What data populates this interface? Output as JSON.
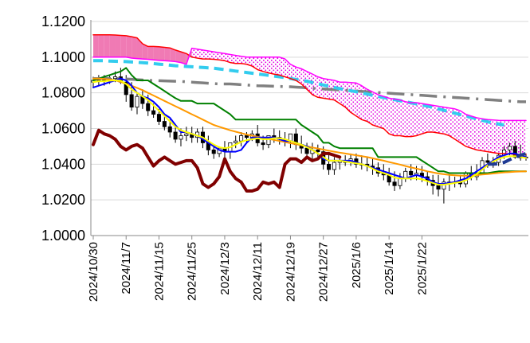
{
  "chart_data": {
    "type": "line",
    "title": "",
    "xlabel": "",
    "ylabel": "",
    "ylim": [
      1.0,
      1.12
    ],
    "yticks": [
      "1.1200",
      "1.1000",
      "1.0800",
      "1.0600",
      "1.0400",
      "1.0200",
      "1.0000"
    ],
    "ytick_values": [
      1.12,
      1.1,
      1.08,
      1.06,
      1.04,
      1.02,
      1.0
    ],
    "xticks": [
      "2024/10/30",
      "2024/11/7",
      "2024/11/15",
      "2024/11/25",
      "2024/12/3",
      "2024/12/11",
      "2024/12/19",
      "2024/12/27",
      "2025/1/6",
      "2025/1/14",
      "2025/1/22"
    ],
    "n_points": 80,
    "grid": "horizontal",
    "candles": {
      "open": [
        1.086,
        1.087,
        1.087,
        1.087,
        1.088,
        1.089,
        1.086,
        1.079,
        1.072,
        1.078,
        1.074,
        1.07,
        1.068,
        1.064,
        1.061,
        1.058,
        1.054,
        1.056,
        1.057,
        1.055,
        1.058,
        1.052,
        1.048,
        1.046,
        1.049,
        1.047,
        1.052,
        1.053,
        1.056,
        1.055,
        1.057,
        1.052,
        1.051,
        1.056,
        1.055,
        1.054,
        1.053,
        1.057,
        1.051,
        1.049,
        1.046,
        1.048,
        1.047,
        1.04,
        1.037,
        1.041,
        1.042,
        1.041,
        1.043,
        1.04,
        1.04,
        1.039,
        1.038,
        1.035,
        1.034,
        1.03,
        1.028,
        1.032,
        1.036,
        1.034,
        1.035,
        1.033,
        1.031,
        1.028,
        1.026,
        1.03,
        1.03,
        1.03,
        1.029,
        1.035,
        1.033,
        1.035,
        1.042,
        1.041,
        1.041,
        1.045,
        1.048,
        1.05,
        1.044,
        1.044
      ],
      "high": [
        1.089,
        1.09,
        1.09,
        1.09,
        1.092,
        1.094,
        1.09,
        1.086,
        1.08,
        1.082,
        1.079,
        1.074,
        1.071,
        1.068,
        1.065,
        1.062,
        1.06,
        1.061,
        1.061,
        1.06,
        1.061,
        1.056,
        1.051,
        1.05,
        1.053,
        1.051,
        1.056,
        1.058,
        1.058,
        1.059,
        1.062,
        1.056,
        1.055,
        1.06,
        1.059,
        1.058,
        1.057,
        1.06,
        1.056,
        1.052,
        1.052,
        1.051,
        1.05,
        1.046,
        1.044,
        1.044,
        1.045,
        1.046,
        1.046,
        1.045,
        1.044,
        1.043,
        1.041,
        1.04,
        1.038,
        1.036,
        1.035,
        1.038,
        1.04,
        1.039,
        1.039,
        1.036,
        1.034,
        1.034,
        1.032,
        1.034,
        1.033,
        1.034,
        1.036,
        1.039,
        1.04,
        1.044,
        1.046,
        1.044,
        1.046,
        1.05,
        1.052,
        1.053,
        1.051,
        1.046
      ],
      "low": [
        1.083,
        1.084,
        1.084,
        1.085,
        1.086,
        1.085,
        1.075,
        1.07,
        1.068,
        1.071,
        1.067,
        1.066,
        1.062,
        1.059,
        1.055,
        1.052,
        1.05,
        1.053,
        1.052,
        1.052,
        1.049,
        1.045,
        1.043,
        1.044,
        1.043,
        1.043,
        1.049,
        1.05,
        1.052,
        1.053,
        1.05,
        1.048,
        1.049,
        1.052,
        1.051,
        1.05,
        1.049,
        1.048,
        1.046,
        1.043,
        1.042,
        1.043,
        1.037,
        1.034,
        1.034,
        1.037,
        1.039,
        1.039,
        1.038,
        1.037,
        1.036,
        1.034,
        1.033,
        1.031,
        1.028,
        1.025,
        1.026,
        1.03,
        1.031,
        1.031,
        1.03,
        1.028,
        1.023,
        1.022,
        1.018,
        1.025,
        1.027,
        1.027,
        1.027,
        1.031,
        1.031,
        1.034,
        1.038,
        1.038,
        1.039,
        1.043,
        1.045,
        1.043,
        1.042,
        1.042
      ],
      "close": [
        1.087,
        1.087,
        1.087,
        1.088,
        1.089,
        1.086,
        1.079,
        1.072,
        1.078,
        1.074,
        1.07,
        1.068,
        1.064,
        1.061,
        1.058,
        1.054,
        1.056,
        1.057,
        1.055,
        1.058,
        1.052,
        1.048,
        1.046,
        1.049,
        1.047,
        1.052,
        1.053,
        1.056,
        1.055,
        1.057,
        1.052,
        1.051,
        1.056,
        1.055,
        1.054,
        1.053,
        1.057,
        1.051,
        1.049,
        1.046,
        1.048,
        1.047,
        1.04,
        1.037,
        1.041,
        1.042,
        1.041,
        1.043,
        1.04,
        1.04,
        1.039,
        1.038,
        1.035,
        1.034,
        1.03,
        1.028,
        1.032,
        1.036,
        1.034,
        1.035,
        1.033,
        1.031,
        1.028,
        1.026,
        1.03,
        1.03,
        1.03,
        1.029,
        1.035,
        1.033,
        1.035,
        1.042,
        1.041,
        1.041,
        1.045,
        1.048,
        1.05,
        1.044,
        1.044,
        1.044
      ]
    },
    "series": [
      {
        "key": "span_a",
        "color": "#ff0000",
        "width": 1.5,
        "offset": 0,
        "values": [
          1.1125,
          1.1125,
          1.1125,
          1.1125,
          1.1124,
          1.1122,
          1.112,
          1.1115,
          1.1108,
          1.1075,
          1.106,
          1.106,
          1.1058,
          1.1055,
          1.1052,
          1.104,
          1.103,
          1.102,
          1.1,
          1.0995,
          1.099,
          1.099,
          1.0988,
          1.0985,
          1.098,
          1.097,
          1.0965,
          1.0965,
          1.096,
          1.095,
          1.093,
          1.092,
          1.0912,
          1.0905,
          1.09,
          1.089,
          1.088,
          1.087,
          1.085,
          1.082,
          1.079,
          1.0775,
          1.077,
          1.0765,
          1.076,
          1.074,
          1.072,
          1.069,
          1.067,
          1.065,
          1.064,
          1.062,
          1.061,
          1.06,
          1.057,
          1.056,
          1.056,
          1.0555,
          1.0555,
          1.056,
          1.057,
          1.058,
          1.058,
          1.0575,
          1.057,
          1.056,
          1.054,
          1.052,
          1.05,
          1.049,
          1.048,
          1.0475,
          1.047,
          1.0465,
          1.046,
          1.046,
          1.0458,
          1.0455,
          1.0455,
          1.0455
        ]
      },
      {
        "key": "span_b",
        "color": "#ff00ff",
        "width": 1.5,
        "offset": 0,
        "values": [
          1.1,
          1.1,
          1.1,
          1.1,
          1.1,
          1.1,
          1.1,
          1.0995,
          1.0992,
          1.099,
          1.0988,
          1.0985,
          1.0982,
          1.098,
          1.0978,
          1.0975,
          1.097,
          1.096,
          1.105,
          1.1045,
          1.104,
          1.1035,
          1.103,
          1.1025,
          1.102,
          1.1015,
          1.101,
          1.1005,
          1.1,
          1.1,
          1.1,
          1.1,
          1.1,
          1.1,
          1.1,
          1.099,
          1.096,
          1.0945,
          1.0935,
          1.092,
          1.0905,
          1.089,
          1.088,
          1.0875,
          1.087,
          1.086,
          1.086,
          1.0858,
          1.0855,
          1.084,
          1.082,
          1.0805,
          1.079,
          1.078,
          1.077,
          1.0765,
          1.076,
          1.075,
          1.0745,
          1.0745,
          1.074,
          1.0735,
          1.073,
          1.0725,
          1.072,
          1.0715,
          1.071,
          1.07,
          1.068,
          1.067,
          1.066,
          1.0655,
          1.065,
          1.0648,
          1.0646,
          1.0645,
          1.0645,
          1.0645,
          1.0645,
          1.0645
        ]
      },
      {
        "key": "base",
        "color": "#008000",
        "width": 2,
        "offset": 0,
        "values": [
          1.087,
          1.088,
          1.089,
          1.09,
          1.091,
          1.092,
          1.094,
          1.09,
          1.087,
          1.087,
          1.087,
          1.085,
          1.083,
          1.081,
          1.079,
          1.077,
          1.0755,
          1.0755,
          1.0755,
          1.074,
          1.074,
          1.074,
          1.074,
          1.072,
          1.07,
          1.068,
          1.065,
          1.065,
          1.065,
          1.065,
          1.065,
          1.065,
          1.065,
          1.065,
          1.065,
          1.065,
          1.065,
          1.065,
          1.062,
          1.06,
          1.058,
          1.056,
          1.052,
          1.052,
          1.05,
          1.049,
          1.049,
          1.049,
          1.049,
          1.049,
          1.049,
          1.049,
          1.044,
          1.044,
          1.044,
          1.044,
          1.044,
          1.044,
          1.044,
          1.044,
          1.042,
          1.04,
          1.038,
          1.036,
          1.036,
          1.035,
          1.035,
          1.035,
          1.035,
          1.035,
          1.035,
          1.035,
          1.035,
          1.0355,
          1.036,
          1.036,
          1.036,
          1.036,
          1.036,
          1.036
        ]
      },
      {
        "key": "conv",
        "color": "#0000ff",
        "width": 2,
        "offset": 0,
        "values": [
          1.083,
          1.084,
          1.085,
          1.086,
          1.087,
          1.088,
          1.087,
          1.084,
          1.08,
          1.078,
          1.077,
          1.075,
          1.072,
          1.068,
          1.066,
          1.062,
          1.058,
          1.058,
          1.057,
          1.056,
          1.054,
          1.052,
          1.05,
          1.048,
          1.047,
          1.047,
          1.047,
          1.048,
          1.052,
          1.055,
          1.055,
          1.055,
          1.055,
          1.055,
          1.054,
          1.053,
          1.053,
          1.052,
          1.051,
          1.05,
          1.048,
          1.046,
          1.043,
          1.042,
          1.042,
          1.042,
          1.042,
          1.042,
          1.041,
          1.04,
          1.039,
          1.038,
          1.037,
          1.036,
          1.035,
          1.034,
          1.033,
          1.032,
          1.033,
          1.034,
          1.033,
          1.032,
          1.03,
          1.029,
          1.029,
          1.0295,
          1.03,
          1.031,
          1.032,
          1.034,
          1.036,
          1.038,
          1.04,
          1.042,
          1.044,
          1.045,
          1.046,
          1.046,
          1.045,
          1.044
        ]
      },
      {
        "key": "ma_short",
        "color": "#ffff00",
        "width": 2,
        "offset": 0,
        "values": [
          1.086,
          1.0865,
          1.0865,
          1.0868,
          1.087,
          1.0868,
          1.085,
          1.082,
          1.08,
          1.078,
          1.076,
          1.073,
          1.07,
          1.067,
          1.064,
          1.061,
          1.059,
          1.058,
          1.057,
          1.056,
          1.055,
          1.053,
          1.051,
          1.0495,
          1.049,
          1.0495,
          1.051,
          1.0525,
          1.0535,
          1.054,
          1.0545,
          1.054,
          1.054,
          1.0545,
          1.0545,
          1.054,
          1.053,
          1.052,
          1.051,
          1.0495,
          1.048,
          1.046,
          1.044,
          1.042,
          1.042,
          1.042,
          1.0415,
          1.041,
          1.0405,
          1.04,
          1.039,
          1.0375,
          1.036,
          1.035,
          1.034,
          1.0325,
          1.032,
          1.032,
          1.032,
          1.032,
          1.0315,
          1.0305,
          1.0295,
          1.0285,
          1.0285,
          1.029,
          1.0295,
          1.03,
          1.031,
          1.0325,
          1.0345,
          1.037,
          1.0395,
          1.0415,
          1.043,
          1.044,
          1.0445,
          1.0445,
          1.044,
          1.0435
        ]
      },
      {
        "key": "ma_long",
        "color": "#ff9900",
        "width": 2,
        "offset": 0,
        "values": [
          1.088,
          1.088,
          1.0878,
          1.0875,
          1.087,
          1.0862,
          1.085,
          1.084,
          1.0828,
          1.0815,
          1.08,
          1.0785,
          1.077,
          1.0755,
          1.074,
          1.0725,
          1.071,
          1.0695,
          1.068,
          1.0665,
          1.065,
          1.0635,
          1.062,
          1.061,
          1.06,
          1.059,
          1.0582,
          1.0574,
          1.0566,
          1.056,
          1.0554,
          1.0548,
          1.0542,
          1.0536,
          1.053,
          1.0524,
          1.0518,
          1.0512,
          1.0506,
          1.05,
          1.0494,
          1.0488,
          1.0482,
          1.0476,
          1.047,
          1.0465,
          1.046,
          1.0455,
          1.045,
          1.0445,
          1.044,
          1.0433,
          1.0426,
          1.042,
          1.0412,
          1.0405,
          1.0398,
          1.039,
          1.0382,
          1.0375,
          1.0368,
          1.036,
          1.0354,
          1.0348,
          1.0344,
          1.034,
          1.0338,
          1.0336,
          1.0336,
          1.0337,
          1.0339,
          1.0342,
          1.0345,
          1.0348,
          1.0351,
          1.0354,
          1.0356,
          1.0358,
          1.0359,
          1.036
        ]
      },
      {
        "key": "lagging",
        "color": "#800000",
        "width": 4,
        "offset": 0,
        "values": [
          1.051,
          1.059,
          1.057,
          1.056,
          1.054,
          1.05,
          1.048,
          1.05,
          1.051,
          1.049,
          1.044,
          1.039,
          1.042,
          1.044,
          1.042,
          1.04,
          1.041,
          1.042,
          1.042,
          1.038,
          1.029,
          1.027,
          1.029,
          1.033,
          1.043,
          1.036,
          1.032,
          1.03,
          1.025,
          1.025,
          1.026,
          1.03,
          1.029,
          1.03,
          1.027,
          1.04,
          1.043,
          1.043,
          1.041,
          1.044,
          1.042,
          1.043,
          1.046,
          1.046,
          1.045,
          1.044
        ]
      },
      {
        "key": "grey_dash",
        "color": "#808080",
        "width": 3.5,
        "dash": "22 8 3 8",
        "offset": 0,
        "values": [
          1.088,
          1.088,
          1.088,
          1.088,
          1.088,
          1.088,
          1.0878,
          1.0876,
          1.0874,
          1.0872,
          1.087,
          1.0869,
          1.0868,
          1.0867,
          1.0866,
          1.0865,
          1.0864,
          1.0862,
          1.086,
          1.0858,
          1.0856,
          1.0854,
          1.0852,
          1.085,
          1.085,
          1.085,
          1.0848,
          1.0846,
          1.0844,
          1.0842,
          1.084,
          1.0839,
          1.0838,
          1.0837,
          1.0836,
          1.0835,
          1.0834,
          1.0832,
          1.083,
          1.0828,
          1.0826,
          1.0824,
          1.0822,
          1.082,
          1.0818,
          1.0816,
          1.0814,
          1.0812,
          1.081,
          1.0808,
          1.0806,
          1.0804,
          1.0802,
          1.08,
          1.0798,
          1.0796,
          1.0794,
          1.0792,
          1.079,
          1.0788,
          1.0786,
          1.0784,
          1.0782,
          1.078,
          1.0778,
          1.0776,
          1.0774,
          1.0772,
          1.077,
          1.0768,
          1.0766,
          1.0764,
          1.0762,
          1.076,
          1.0758,
          1.0756,
          1.0754,
          1.0752,
          1.075,
          1.075
        ]
      },
      {
        "key": "cyan_dash",
        "color": "#33ccee",
        "width": 4,
        "dash": "12 7",
        "offset": 0,
        "values": [
          1.098,
          1.098,
          1.098,
          1.0978,
          1.0977,
          1.0976,
          1.0975,
          1.0973,
          1.0971,
          1.0969,
          1.0967,
          1.0964,
          1.0961,
          1.0958,
          1.0955,
          1.0952,
          1.095,
          1.0948,
          1.0946,
          1.0944,
          1.0942,
          1.094,
          1.0938,
          1.0934,
          1.093,
          1.0926,
          1.0922,
          1.0918,
          1.0914,
          1.091,
          1.0906,
          1.0902,
          1.0898,
          1.0894,
          1.089,
          1.0885,
          1.088,
          1.0875,
          1.087,
          1.0865,
          1.0858,
          1.0851,
          1.0844,
          1.0837,
          1.083,
          1.0824,
          1.0818,
          1.0812,
          1.0806,
          1.08,
          1.0793,
          1.0786,
          1.078,
          1.0774,
          1.0768,
          1.0762,
          1.0756,
          1.075,
          1.0744,
          1.0738,
          1.0732,
          1.0726,
          1.0718,
          1.071,
          1.0702,
          1.0694,
          1.0686,
          1.0678,
          1.067,
          1.0662,
          1.0654,
          1.0646,
          1.0638,
          1.063,
          1.0625,
          1.062
        ]
      },
      {
        "key": "navy_dash",
        "color": "#1f3a93",
        "width": 4,
        "dash": "12 7",
        "offset": 0,
        "values": [
          1.04,
          1.04,
          1.0403,
          1.041,
          1.0425,
          1.044,
          1.045,
          1.046
        ]
      }
    ]
  }
}
